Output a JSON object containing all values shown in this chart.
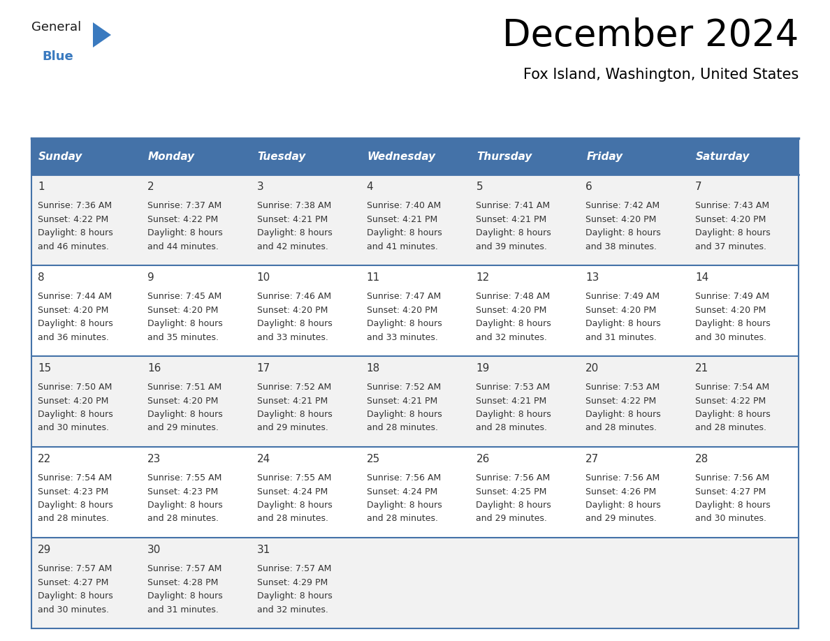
{
  "title": "December 2024",
  "subtitle": "Fox Island, Washington, United States",
  "header_color": "#4472a8",
  "header_text_color": "#ffffff",
  "border_color": "#4472a8",
  "day_number_color": "#333333",
  "cell_text_color": "#333333",
  "cell_bg_even": "#f2f2f2",
  "cell_bg_odd": "#ffffff",
  "weekdays": [
    "Sunday",
    "Monday",
    "Tuesday",
    "Wednesday",
    "Thursday",
    "Friday",
    "Saturday"
  ],
  "days": [
    {
      "date": 1,
      "col": 0,
      "row": 0,
      "sunrise": "7:36 AM",
      "sunset": "4:22 PM",
      "daylight_h": "8 hours",
      "daylight_m": "46 minutes."
    },
    {
      "date": 2,
      "col": 1,
      "row": 0,
      "sunrise": "7:37 AM",
      "sunset": "4:22 PM",
      "daylight_h": "8 hours",
      "daylight_m": "44 minutes."
    },
    {
      "date": 3,
      "col": 2,
      "row": 0,
      "sunrise": "7:38 AM",
      "sunset": "4:21 PM",
      "daylight_h": "8 hours",
      "daylight_m": "42 minutes."
    },
    {
      "date": 4,
      "col": 3,
      "row": 0,
      "sunrise": "7:40 AM",
      "sunset": "4:21 PM",
      "daylight_h": "8 hours",
      "daylight_m": "41 minutes."
    },
    {
      "date": 5,
      "col": 4,
      "row": 0,
      "sunrise": "7:41 AM",
      "sunset": "4:21 PM",
      "daylight_h": "8 hours",
      "daylight_m": "39 minutes."
    },
    {
      "date": 6,
      "col": 5,
      "row": 0,
      "sunrise": "7:42 AM",
      "sunset": "4:20 PM",
      "daylight_h": "8 hours",
      "daylight_m": "38 minutes."
    },
    {
      "date": 7,
      "col": 6,
      "row": 0,
      "sunrise": "7:43 AM",
      "sunset": "4:20 PM",
      "daylight_h": "8 hours",
      "daylight_m": "37 minutes."
    },
    {
      "date": 8,
      "col": 0,
      "row": 1,
      "sunrise": "7:44 AM",
      "sunset": "4:20 PM",
      "daylight_h": "8 hours",
      "daylight_m": "36 minutes."
    },
    {
      "date": 9,
      "col": 1,
      "row": 1,
      "sunrise": "7:45 AM",
      "sunset": "4:20 PM",
      "daylight_h": "8 hours",
      "daylight_m": "35 minutes."
    },
    {
      "date": 10,
      "col": 2,
      "row": 1,
      "sunrise": "7:46 AM",
      "sunset": "4:20 PM",
      "daylight_h": "8 hours",
      "daylight_m": "33 minutes."
    },
    {
      "date": 11,
      "col": 3,
      "row": 1,
      "sunrise": "7:47 AM",
      "sunset": "4:20 PM",
      "daylight_h": "8 hours",
      "daylight_m": "33 minutes."
    },
    {
      "date": 12,
      "col": 4,
      "row": 1,
      "sunrise": "7:48 AM",
      "sunset": "4:20 PM",
      "daylight_h": "8 hours",
      "daylight_m": "32 minutes."
    },
    {
      "date": 13,
      "col": 5,
      "row": 1,
      "sunrise": "7:49 AM",
      "sunset": "4:20 PM",
      "daylight_h": "8 hours",
      "daylight_m": "31 minutes."
    },
    {
      "date": 14,
      "col": 6,
      "row": 1,
      "sunrise": "7:49 AM",
      "sunset": "4:20 PM",
      "daylight_h": "8 hours",
      "daylight_m": "30 minutes."
    },
    {
      "date": 15,
      "col": 0,
      "row": 2,
      "sunrise": "7:50 AM",
      "sunset": "4:20 PM",
      "daylight_h": "8 hours",
      "daylight_m": "30 minutes."
    },
    {
      "date": 16,
      "col": 1,
      "row": 2,
      "sunrise": "7:51 AM",
      "sunset": "4:20 PM",
      "daylight_h": "8 hours",
      "daylight_m": "29 minutes."
    },
    {
      "date": 17,
      "col": 2,
      "row": 2,
      "sunrise": "7:52 AM",
      "sunset": "4:21 PM",
      "daylight_h": "8 hours",
      "daylight_m": "29 minutes."
    },
    {
      "date": 18,
      "col": 3,
      "row": 2,
      "sunrise": "7:52 AM",
      "sunset": "4:21 PM",
      "daylight_h": "8 hours",
      "daylight_m": "28 minutes."
    },
    {
      "date": 19,
      "col": 4,
      "row": 2,
      "sunrise": "7:53 AM",
      "sunset": "4:21 PM",
      "daylight_h": "8 hours",
      "daylight_m": "28 minutes."
    },
    {
      "date": 20,
      "col": 5,
      "row": 2,
      "sunrise": "7:53 AM",
      "sunset": "4:22 PM",
      "daylight_h": "8 hours",
      "daylight_m": "28 minutes."
    },
    {
      "date": 21,
      "col": 6,
      "row": 2,
      "sunrise": "7:54 AM",
      "sunset": "4:22 PM",
      "daylight_h": "8 hours",
      "daylight_m": "28 minutes."
    },
    {
      "date": 22,
      "col": 0,
      "row": 3,
      "sunrise": "7:54 AM",
      "sunset": "4:23 PM",
      "daylight_h": "8 hours",
      "daylight_m": "28 minutes."
    },
    {
      "date": 23,
      "col": 1,
      "row": 3,
      "sunrise": "7:55 AM",
      "sunset": "4:23 PM",
      "daylight_h": "8 hours",
      "daylight_m": "28 minutes."
    },
    {
      "date": 24,
      "col": 2,
      "row": 3,
      "sunrise": "7:55 AM",
      "sunset": "4:24 PM",
      "daylight_h": "8 hours",
      "daylight_m": "28 minutes."
    },
    {
      "date": 25,
      "col": 3,
      "row": 3,
      "sunrise": "7:56 AM",
      "sunset": "4:24 PM",
      "daylight_h": "8 hours",
      "daylight_m": "28 minutes."
    },
    {
      "date": 26,
      "col": 4,
      "row": 3,
      "sunrise": "7:56 AM",
      "sunset": "4:25 PM",
      "daylight_h": "8 hours",
      "daylight_m": "29 minutes."
    },
    {
      "date": 27,
      "col": 5,
      "row": 3,
      "sunrise": "7:56 AM",
      "sunset": "4:26 PM",
      "daylight_h": "8 hours",
      "daylight_m": "29 minutes."
    },
    {
      "date": 28,
      "col": 6,
      "row": 3,
      "sunrise": "7:56 AM",
      "sunset": "4:27 PM",
      "daylight_h": "8 hours",
      "daylight_m": "30 minutes."
    },
    {
      "date": 29,
      "col": 0,
      "row": 4,
      "sunrise": "7:57 AM",
      "sunset": "4:27 PM",
      "daylight_h": "8 hours",
      "daylight_m": "30 minutes."
    },
    {
      "date": 30,
      "col": 1,
      "row": 4,
      "sunrise": "7:57 AM",
      "sunset": "4:28 PM",
      "daylight_h": "8 hours",
      "daylight_m": "31 minutes."
    },
    {
      "date": 31,
      "col": 2,
      "row": 4,
      "sunrise": "7:57 AM",
      "sunset": "4:29 PM",
      "daylight_h": "8 hours",
      "daylight_m": "32 minutes."
    }
  ],
  "logo_text1": "General",
  "logo_text2": "Blue",
  "logo_color1": "#1a1a1a",
  "logo_color2": "#3a7abf",
  "logo_triangle_color": "#3a7abf",
  "title_fontsize": 38,
  "subtitle_fontsize": 15,
  "header_fontsize": 11,
  "day_num_fontsize": 11,
  "cell_text_fontsize": 9
}
